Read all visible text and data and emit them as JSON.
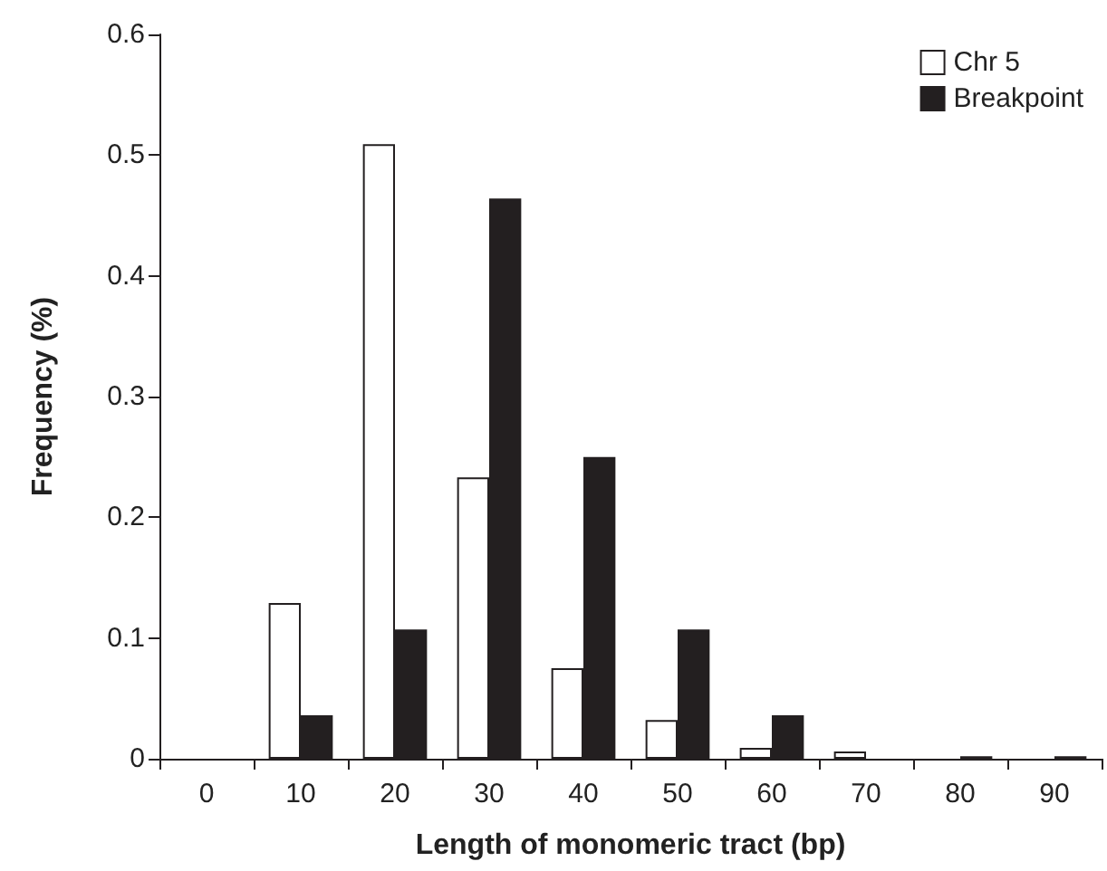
{
  "chart_data": {
    "type": "bar",
    "xlabel": "Length of monomeric tract (bp)",
    "ylabel": "Frequency (%)",
    "categories": [
      "0",
      "10",
      "20",
      "30",
      "40",
      "50",
      "60",
      "70",
      "80",
      "90"
    ],
    "series": [
      {
        "name": "Chr 5",
        "color": "#ffffff",
        "values": [
          0,
          0.129,
          0.509,
          0.233,
          0.075,
          0.032,
          0.009,
          0.006,
          0,
          0
        ]
      },
      {
        "name": "Breakpoint",
        "color": "#231f20",
        "values": [
          0,
          0.036,
          0.107,
          0.464,
          0.25,
          0.107,
          0.036,
          0,
          0.002,
          0.002
        ]
      }
    ],
    "ylim": [
      0,
      0.6
    ],
    "yticks": [
      0,
      0.1,
      0.2,
      0.3,
      0.4,
      0.5,
      0.6
    ],
    "grid": false,
    "legend": "top right"
  }
}
